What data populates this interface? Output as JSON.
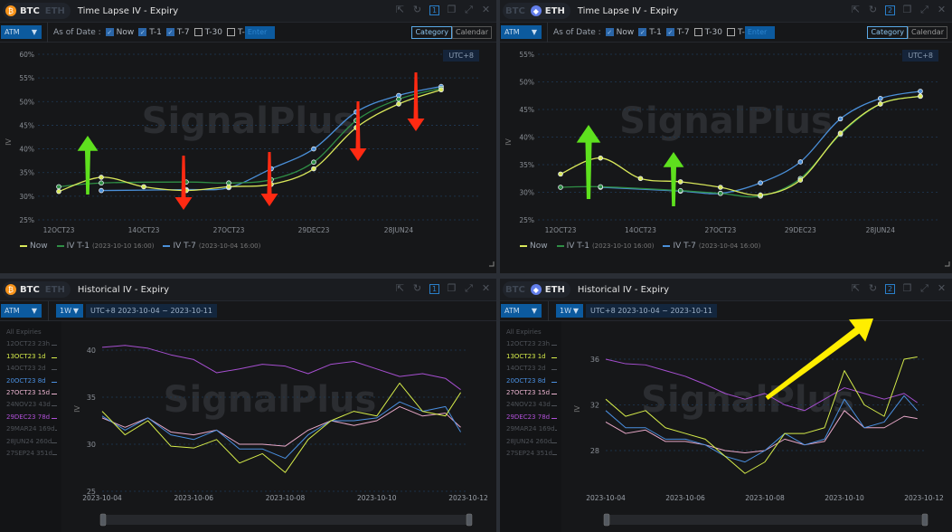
{
  "panels": [
    {
      "assets": [
        "BTC",
        "ETH"
      ],
      "active_asset": "BTC",
      "coin_glyph": "₿",
      "coin_color": "#f7931a",
      "title": "Time Lapse IV - Expiry",
      "window_number": "1",
      "kind": "timelapse",
      "mode": "ATM",
      "as_of_label": "As of Date :",
      "checks": [
        {
          "label": "Now",
          "checked": true
        },
        {
          "label": "T-1",
          "checked": true
        },
        {
          "label": "T-7",
          "checked": true
        },
        {
          "label": "T-30",
          "checked": false
        },
        {
          "label": "T-",
          "checked": false
        }
      ],
      "custom_placeholder": "Enter",
      "views": [
        "Category",
        "Calendar"
      ],
      "active_view": "Category",
      "tz_badge": "UTC+8",
      "watermark": "SignalPlus"
    },
    {
      "assets": [
        "BTC",
        "ETH"
      ],
      "active_asset": "ETH",
      "coin_glyph": "◆",
      "coin_color": "#627eea",
      "title": "Time Lapse IV - Expiry",
      "window_number": "2",
      "kind": "timelapse",
      "mode": "ATM",
      "as_of_label": "As of Date :",
      "checks": [
        {
          "label": "Now",
          "checked": true
        },
        {
          "label": "T-1",
          "checked": true
        },
        {
          "label": "T-7",
          "checked": true
        },
        {
          "label": "T-30",
          "checked": false
        },
        {
          "label": "T-",
          "checked": false
        }
      ],
      "custom_placeholder": "Enter",
      "views": [
        "Category",
        "Calendar"
      ],
      "active_view": "Category",
      "tz_badge": "UTC+8",
      "watermark": "SignalPlus"
    },
    {
      "assets": [
        "BTC",
        "ETH"
      ],
      "active_asset": "BTC",
      "coin_glyph": "₿",
      "coin_color": "#f7931a",
      "title": "Historical IV - Expiry",
      "window_number": "1",
      "kind": "historical",
      "mode": "ATM",
      "period": "1W",
      "range": "UTC+8 2023-10-04 ~ 2023-10-11",
      "watermark": "SignalPlus",
      "expiries_header": "All Expiries",
      "expiries": [
        {
          "label": "12OCT23 23h",
          "color": "#4d5157"
        },
        {
          "label": "13OCT23 1d",
          "color": "#d6ec4a"
        },
        {
          "label": "14OCT23 2d",
          "color": "#4d5157"
        },
        {
          "label": "20OCT23 8d",
          "color": "#4a8fe0"
        },
        {
          "label": "27OCT23 15d",
          "color": "#eab3cf"
        },
        {
          "label": "24NOV23 43d",
          "color": "#4d5157"
        },
        {
          "label": "29DEC23 78d",
          "color": "#b050d8"
        },
        {
          "label": "29MAR24 169d",
          "color": "#4d5157"
        },
        {
          "label": "28JUN24 260d",
          "color": "#4d5157"
        },
        {
          "label": "27SEP24 351d",
          "color": "#4d5157"
        }
      ]
    },
    {
      "assets": [
        "BTC",
        "ETH"
      ],
      "active_asset": "ETH",
      "coin_glyph": "◆",
      "coin_color": "#627eea",
      "title": "Historical IV - Expiry",
      "window_number": "2",
      "kind": "historical",
      "mode": "ATM",
      "period": "1W",
      "range": "UTC+8 2023-10-04 ~ 2023-10-11",
      "watermark": "SignalPlus",
      "expiries_header": "All Expiries",
      "expiries": [
        {
          "label": "12OCT23 23h",
          "color": "#4d5157"
        },
        {
          "label": "13OCT23 1d",
          "color": "#d6ec4a"
        },
        {
          "label": "14OCT23 2d",
          "color": "#4d5157"
        },
        {
          "label": "20OCT23 8d",
          "color": "#4a8fe0"
        },
        {
          "label": "27OCT23 15d",
          "color": "#eab3cf"
        },
        {
          "label": "24NOV23 43d",
          "color": "#4d5157"
        },
        {
          "label": "29DEC23 78d",
          "color": "#b050d8"
        },
        {
          "label": "29MAR24 169d",
          "color": "#4d5157"
        },
        {
          "label": "28JUN24 260d",
          "color": "#4d5157"
        },
        {
          "label": "27SEP24 351d",
          "color": "#4d5157"
        }
      ]
    }
  ],
  "chart_data": [
    {
      "type": "line",
      "title": "Time Lapse IV - Expiry",
      "xlabel": "",
      "ylabel": "IV",
      "ylim": [
        25,
        60
      ],
      "grid": true,
      "legend": "bottom-left",
      "categories": [
        "12OCT23",
        "13OCT23",
        "14OCT23",
        "20OCT23",
        "27OCT23",
        "24NOV23",
        "29DEC23",
        "29MAR24",
        "28JUN24",
        "27SEP24"
      ],
      "x_tick_labels": [
        "12OCT23",
        "14OCT23",
        "27OCT23",
        "29DEC23",
        "28JUN24"
      ],
      "y_ticks": [
        25,
        30,
        35,
        40,
        45,
        50,
        55,
        60
      ],
      "y_tick_labels": [
        "25%",
        "30%",
        "35%",
        "40%",
        "45%",
        "50%",
        "55%",
        "60%"
      ],
      "series": [
        {
          "name": "Now",
          "color": "#d9e85a",
          "values": [
            31.0,
            34.0,
            32.0,
            31.2,
            32.0,
            32.5,
            35.8,
            44.5,
            49.5,
            52.5
          ]
        },
        {
          "name": "IV T-1",
          "timestamp": "(2023-10-10 16:00)",
          "color": "#2f8f45",
          "values": [
            32.0,
            32.8,
            null,
            33.0,
            32.8,
            33.5,
            37.2,
            46.0,
            50.5,
            52.8
          ]
        },
        {
          "name": "IV T-7",
          "timestamp": "(2023-10-04 16:00)",
          "color": "#4a8fd8",
          "values": [
            null,
            31.2,
            null,
            31.4,
            31.8,
            35.8,
            40.0,
            47.8,
            51.3,
            53.2
          ]
        }
      ]
    },
    {
      "type": "line",
      "title": "Time Lapse IV - Expiry",
      "xlabel": "",
      "ylabel": "IV",
      "ylim": [
        25,
        55
      ],
      "grid": true,
      "legend": "bottom-left",
      "categories": [
        "12OCT23",
        "13OCT23",
        "14OCT23",
        "20OCT23",
        "27OCT23",
        "24NOV23",
        "29DEC23",
        "29MAR24",
        "28JUN24",
        "27SEP24"
      ],
      "x_tick_labels": [
        "12OCT23",
        "14OCT23",
        "27OCT23",
        "29DEC23",
        "28JUN24"
      ],
      "y_ticks": [
        25,
        30,
        35,
        40,
        45,
        50,
        55
      ],
      "y_tick_labels": [
        "25%",
        "30%",
        "35%",
        "40%",
        "45%",
        "50%",
        "55%"
      ],
      "series": [
        {
          "name": "Now",
          "color": "#d9e85a",
          "values": [
            33.3,
            36.2,
            32.5,
            31.9,
            30.9,
            29.5,
            32.2,
            40.7,
            46.0,
            47.4
          ]
        },
        {
          "name": "IV T-1",
          "timestamp": "(2023-10-10 16:00)",
          "color": "#2f8f45",
          "values": [
            30.9,
            31.0,
            null,
            30.3,
            29.8,
            29.3,
            32.5,
            40.5,
            46.0,
            47.4
          ]
        },
        {
          "name": "IV T-7",
          "timestamp": "(2023-10-04 16:00)",
          "color": "#4a8fd8",
          "values": [
            null,
            30.9,
            null,
            30.2,
            29.8,
            31.7,
            35.5,
            43.3,
            47.0,
            48.3
          ]
        }
      ]
    },
    {
      "type": "line",
      "title": "Historical IV - Expiry",
      "xlabel": "",
      "ylabel": "IV",
      "ylim": [
        25,
        41
      ],
      "grid": true,
      "x_tick_labels": [
        "2023-10-04",
        "2023-10-06",
        "2023-10-08",
        "2023-10-10",
        "2023-10-12"
      ],
      "y_ticks": [
        25,
        30,
        35,
        40
      ],
      "y_tick_labels": [
        "25",
        "30",
        "35",
        "40"
      ],
      "x": [
        "2023-10-04 00:00",
        "2023-10-04 12:00",
        "2023-10-05 00:00",
        "2023-10-05 12:00",
        "2023-10-06 00:00",
        "2023-10-06 12:00",
        "2023-10-07 00:00",
        "2023-10-07 12:00",
        "2023-10-08 00:00",
        "2023-10-08 12:00",
        "2023-10-09 00:00",
        "2023-10-09 12:00",
        "2023-10-10 00:00",
        "2023-10-10 12:00",
        "2023-10-11 00:00",
        "2023-10-11 12:00",
        "2023-10-11 20:00"
      ],
      "series": [
        {
          "name": "29DEC23 78d",
          "color": "#a64fd0",
          "values": [
            40.3,
            40.5,
            40.2,
            39.5,
            39.0,
            37.6,
            38.0,
            38.5,
            38.3,
            37.5,
            38.5,
            38.8,
            38.0,
            37.2,
            37.5,
            37.0,
            35.8
          ]
        },
        {
          "name": "27OCT23 15d",
          "color": "#e8a8c8",
          "values": [
            32.8,
            31.8,
            32.8,
            31.3,
            31.0,
            31.5,
            30.0,
            30.0,
            29.8,
            31.5,
            32.5,
            32.0,
            32.5,
            34.0,
            33.0,
            33.3,
            31.8
          ]
        },
        {
          "name": "20OCT23 8d",
          "color": "#4a8fe0",
          "values": [
            33.0,
            31.5,
            32.8,
            31.0,
            30.5,
            31.5,
            29.5,
            29.5,
            28.5,
            31.0,
            32.5,
            32.5,
            32.8,
            34.5,
            33.5,
            34.0,
            31.3
          ]
        },
        {
          "name": "13OCT23 1d",
          "color": "#d6ec4a",
          "values": [
            33.5,
            31.0,
            32.5,
            29.8,
            29.6,
            30.5,
            28.0,
            29.0,
            27.0,
            30.5,
            32.5,
            33.5,
            33.0,
            36.5,
            33.5,
            33.0,
            35.5
          ]
        }
      ]
    },
    {
      "type": "line",
      "title": "Historical IV - Expiry",
      "xlabel": "",
      "ylabel": "IV",
      "ylim": [
        25,
        38.5
      ],
      "grid": true,
      "x_tick_labels": [
        "2023-10-04",
        "2023-10-06",
        "2023-10-08",
        "2023-10-10",
        "2023-10-12"
      ],
      "y_ticks": [
        28,
        32,
        36
      ],
      "y_tick_labels": [
        "28",
        "32",
        "36"
      ],
      "x": [
        "2023-10-04 00:00",
        "2023-10-04 12:00",
        "2023-10-05 00:00",
        "2023-10-05 12:00",
        "2023-10-06 00:00",
        "2023-10-06 12:00",
        "2023-10-07 00:00",
        "2023-10-07 12:00",
        "2023-10-08 00:00",
        "2023-10-08 12:00",
        "2023-10-09 00:00",
        "2023-10-09 12:00",
        "2023-10-10 00:00",
        "2023-10-10 12:00",
        "2023-10-11 00:00",
        "2023-10-11 12:00",
        "2023-10-11 20:00"
      ],
      "series": [
        {
          "name": "29DEC23 78d",
          "color": "#a64fd0",
          "values": [
            36.0,
            35.6,
            35.5,
            35.0,
            34.5,
            33.8,
            33.0,
            32.5,
            33.0,
            32.0,
            31.5,
            32.5,
            33.5,
            33.0,
            32.5,
            33.0,
            32.2
          ]
        },
        {
          "name": "27OCT23 15d",
          "color": "#e8a8c8",
          "values": [
            30.5,
            29.5,
            29.8,
            28.8,
            28.8,
            28.5,
            28.0,
            27.8,
            28.0,
            29.0,
            28.5,
            28.8,
            31.5,
            30.0,
            30.0,
            31.0,
            30.8
          ]
        },
        {
          "name": "20OCT23 8d",
          "color": "#4a8fe0",
          "values": [
            31.5,
            30.0,
            30.0,
            29.0,
            29.0,
            28.5,
            27.5,
            27.0,
            28.0,
            29.5,
            28.5,
            29.0,
            32.5,
            30.0,
            30.5,
            32.8,
            31.5
          ]
        },
        {
          "name": "13OCT23 1d",
          "color": "#d6ec4a",
          "values": [
            32.5,
            31.0,
            31.5,
            30.0,
            29.5,
            29.0,
            27.5,
            26.0,
            27.0,
            29.5,
            29.5,
            30.0,
            35.0,
            32.0,
            31.0,
            36.0,
            36.2
          ]
        }
      ]
    }
  ]
}
